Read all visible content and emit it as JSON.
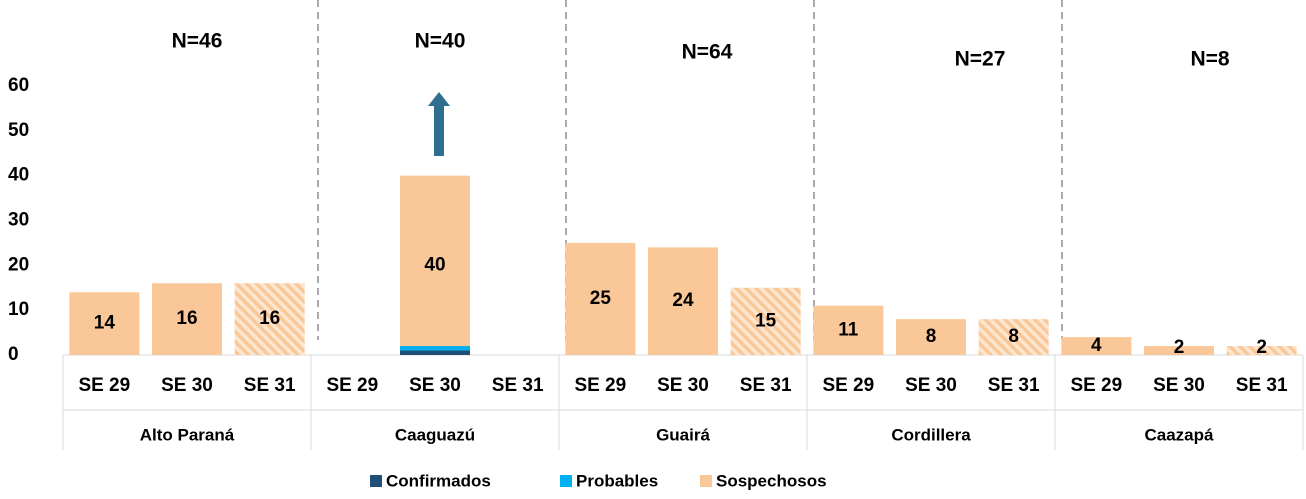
{
  "chart_data": {
    "type": "bar",
    "stacked": true,
    "groups": [
      "Alto Paraná",
      "Caaguazú",
      "Guairá",
      "Cordillera",
      "Caazapá"
    ],
    "categories": [
      "SE 29",
      "SE 30",
      "SE 31",
      "SE 29",
      "SE 30",
      "SE 31",
      "SE 29",
      "SE 30",
      "SE 31",
      "SE 29",
      "SE 30",
      "SE 31",
      "SE 29",
      "SE 30",
      "SE 31"
    ],
    "series": [
      {
        "name": "Confirmados",
        "color": "#1f4e79",
        "values": [
          0,
          0,
          0,
          0,
          1,
          0,
          0,
          0,
          0,
          0,
          0,
          0,
          0,
          0,
          0
        ]
      },
      {
        "name": "Probables",
        "color": "#00b0f0",
        "values": [
          0,
          0,
          0,
          0,
          1,
          0,
          0,
          0,
          0,
          0,
          0,
          0,
          0,
          0,
          0
        ]
      },
      {
        "name": "Sospechosos",
        "color": "#fac898",
        "values": [
          14,
          16,
          16,
          0,
          38,
          0,
          25,
          24,
          15,
          11,
          8,
          8,
          4,
          2,
          2
        ]
      }
    ],
    "totals": [
      14,
      16,
      16,
      null,
      40,
      null,
      25,
      24,
      15,
      11,
      8,
      8,
      4,
      2,
      2
    ],
    "annotations": [
      "N=46",
      "N=40",
      "N=64",
      "N=27",
      "N=8"
    ],
    "ylim": [
      0,
      60
    ],
    "yticks": [
      0,
      10,
      20,
      30,
      40,
      50,
      60
    ],
    "grid": false
  }
}
